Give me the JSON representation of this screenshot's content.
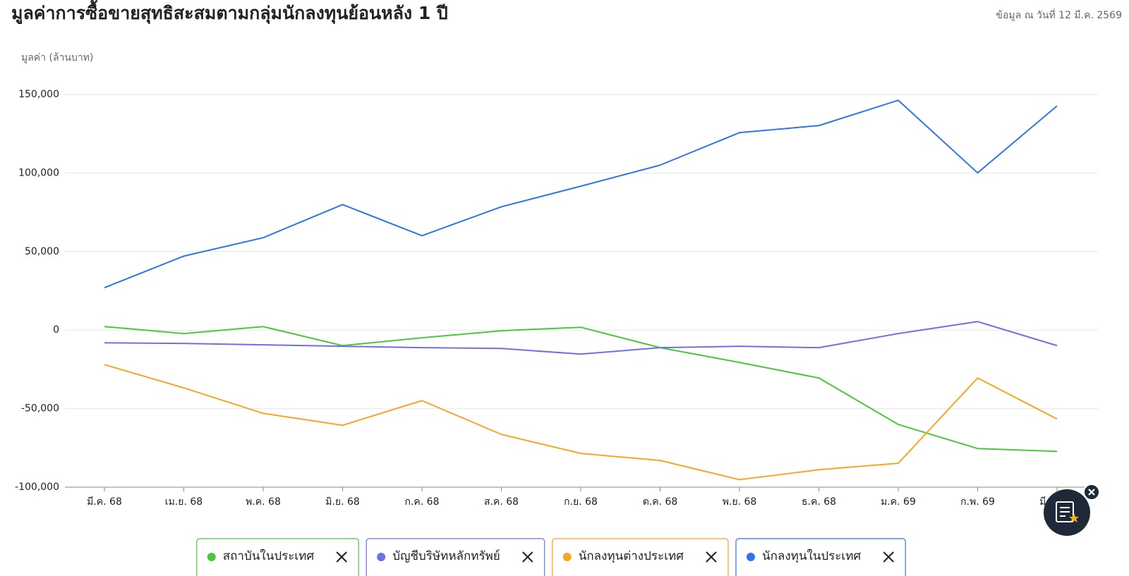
{
  "chart_data": {
    "type": "line",
    "title": "มูลค่าการซื้อขายสุทธิสะสมตามกลุ่มนักลงทุนย้อนหลัง 1 ปี",
    "subtitle": "ข้อมูล ณ วันที่ 12 มี.ค. 2569",
    "y_label": "มูลค่า (ล้านบาท)",
    "categories": [
      "มี.ค. 68",
      "เม.ย. 68",
      "พ.ค. 68",
      "มิ.ย. 68",
      "ก.ค. 68",
      "ส.ค. 68",
      "ก.ย. 68",
      "ต.ค. 68",
      "พ.ย. 68",
      "ธ.ค. 68",
      "ม.ค. 69",
      "ก.พ. 69",
      "มี.ค. 69"
    ],
    "ylim": [
      -100000,
      150000
    ],
    "yticks": [
      {
        "value": -100000,
        "label": "-100,000"
      },
      {
        "value": -50000,
        "label": "-50,000"
      },
      0,
      {
        "value": 50000,
        "label": "50,000"
      },
      {
        "value": 100000,
        "label": "100,000"
      },
      {
        "value": 150000,
        "label": "150,000"
      }
    ],
    "grid": true,
    "series": [
      {
        "name": "สถาบันในประเทศ",
        "color": "#4cc63c",
        "values": [
          2200,
          -2200,
          2200,
          -9900,
          -4900,
          -400,
          1800,
          -11200,
          -20600,
          -30500,
          -60100,
          -75400,
          -77200
        ]
      },
      {
        "name": "บัญชีบริษัทหลักทรัพย์",
        "color": "#7070e6",
        "values": [
          -8100,
          -8500,
          -9400,
          -10300,
          -11200,
          -11700,
          -15300,
          -11200,
          -10300,
          -11200,
          -2200,
          5400,
          -9900
        ]
      },
      {
        "name": "นักลงทุนต่างประเทศ",
        "color": "#f5a623",
        "values": [
          -22000,
          -36800,
          -53000,
          -60600,
          -44900,
          -66400,
          -78500,
          -83000,
          -95200,
          -88900,
          -84800,
          -30500,
          -56600
        ]
      },
      {
        "name": "นักลงทุนในประเทศ",
        "color": "#2f74eb",
        "values": [
          27000,
          47100,
          58800,
          79900,
          60100,
          78500,
          91600,
          105000,
          125700,
          130200,
          146300,
          100100,
          142700
        ]
      }
    ]
  }
}
